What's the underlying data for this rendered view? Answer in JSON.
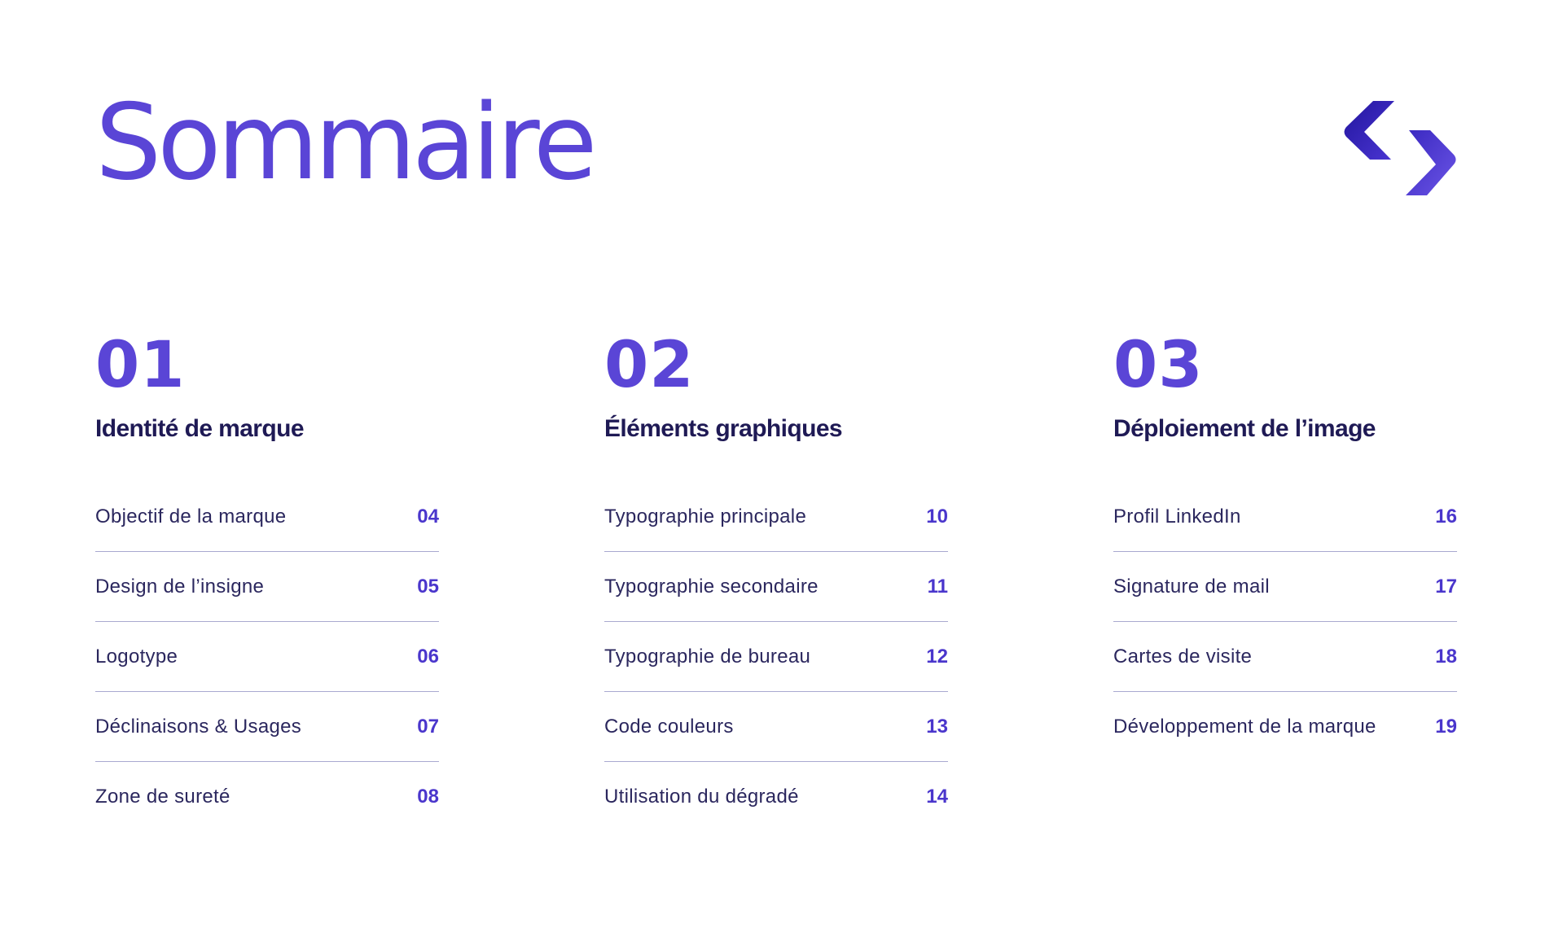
{
  "header": {
    "title": "Sommaire",
    "logo_icon": "chevrons-logo-icon"
  },
  "colors": {
    "accent": "#5a45d6",
    "heading": "#1f1a55",
    "text": "#2b275e",
    "page_number": "#4a36cc",
    "divider": "#a9a9d0"
  },
  "sections": [
    {
      "number": "01",
      "title": "Identité de marque",
      "items": [
        {
          "label": "Objectif de la marque",
          "page": "04"
        },
        {
          "label": "Design de l’insigne",
          "page": "05"
        },
        {
          "label": "Logotype",
          "page": "06"
        },
        {
          "label": "Déclinaisons & Usages",
          "page": "07"
        },
        {
          "label": "Zone de sureté",
          "page": "08"
        }
      ]
    },
    {
      "number": "02",
      "title": "Éléments graphiques",
      "items": [
        {
          "label": "Typographie principale",
          "page": "10"
        },
        {
          "label": "Typographie secondaire",
          "page": "11"
        },
        {
          "label": "Typographie de bureau",
          "page": "12"
        },
        {
          "label": "Code couleurs",
          "page": "13"
        },
        {
          "label": "Utilisation du dégradé",
          "page": "14"
        }
      ]
    },
    {
      "number": "03",
      "title": "Déploiement de l’image",
      "items": [
        {
          "label": "Profil LinkedIn",
          "page": "16"
        },
        {
          "label": "Signature de mail",
          "page": "17"
        },
        {
          "label": "Cartes de visite",
          "page": "18"
        },
        {
          "label": "Développement de la marque",
          "page": "19"
        }
      ]
    }
  ]
}
